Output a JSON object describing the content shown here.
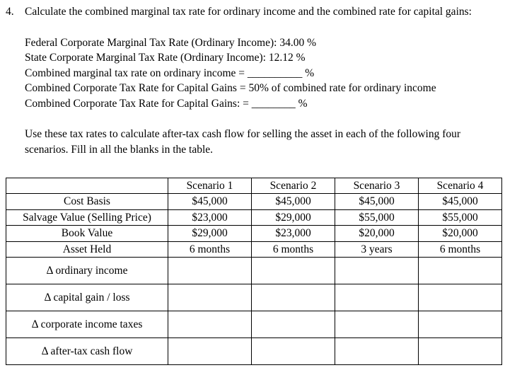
{
  "document": {
    "question_number": "4.",
    "intro": "Calculate the combined marginal tax rate for ordinary income and the combined rate for capital gains:",
    "lines": [
      "Federal Corporate Marginal Tax Rate (Ordinary Income): 34.00 %",
      "State Corporate Marginal Tax Rate (Ordinary Income): 12.12 %",
      "Combined marginal tax rate on ordinary income = __________ %",
      "Combined Corporate Tax Rate for Capital Gains = 50% of combined rate for ordinary income",
      "Combined Corporate Tax Rate for Capital Gains: = ________ %"
    ],
    "instruction": "Use these tax rates to calculate after-tax cash flow for selling the asset in each of the following four scenarios.  Fill in all the blanks in the table."
  },
  "table": {
    "headers": [
      "",
      "Scenario 1",
      "Scenario 2",
      "Scenario 3",
      "Scenario 4"
    ],
    "rows": [
      {
        "label": "Cost Basis",
        "values": [
          "$45,000",
          "$45,000",
          "$45,000",
          "$45,000"
        ],
        "tall": false
      },
      {
        "label": "Salvage Value (Selling Price)",
        "values": [
          "$23,000",
          "$29,000",
          "$55,000",
          "$55,000"
        ],
        "tall": false
      },
      {
        "label": "Book Value",
        "values": [
          "$29,000",
          "$23,000",
          "$20,000",
          "$20,000"
        ],
        "tall": false
      },
      {
        "label": "Asset Held",
        "values": [
          "6 months",
          "6 months",
          "3 years",
          "6 months"
        ],
        "tall": false
      },
      {
        "label": "Δ ordinary income",
        "values": [
          "",
          "",
          "",
          ""
        ],
        "tall": true
      },
      {
        "label": "Δ capital gain / loss",
        "values": [
          "",
          "",
          "",
          ""
        ],
        "tall": true
      },
      {
        "label": "Δ corporate income taxes",
        "values": [
          "",
          "",
          "",
          ""
        ],
        "tall": true
      },
      {
        "label": "Δ after-tax cash flow",
        "values": [
          "",
          "",
          "",
          ""
        ],
        "tall": true
      }
    ]
  }
}
